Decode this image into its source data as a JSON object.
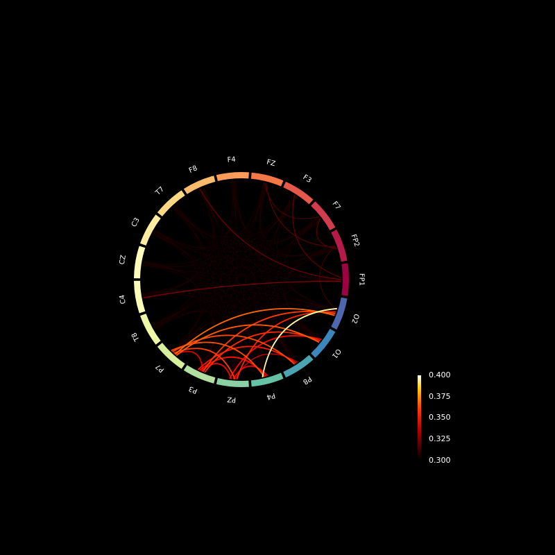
{
  "chart_data": {
    "type": "circular-connectivity",
    "title": "",
    "background": "#000000",
    "label_color": "#ffffff",
    "nodes": [
      {
        "label": "FP1",
        "angle": 0,
        "color": "#9e0142"
      },
      {
        "label": "FP2",
        "angle": 16,
        "color": "#c0234f"
      },
      {
        "label": "F7",
        "angle": 32,
        "color": "#dc494c"
      },
      {
        "label": "F3",
        "angle": 48,
        "color": "#f06744"
      },
      {
        "label": "FZ",
        "angle": 64,
        "color": "#f88c51"
      },
      {
        "label": "F4",
        "angle": 80,
        "color": "#fdb365"
      },
      {
        "label": "F8",
        "angle": 96,
        "color": "#fed27f"
      },
      {
        "label": "T7",
        "angle": 112,
        "color": "#feeb9d"
      },
      {
        "label": "C3",
        "angle": 128,
        "color": "#fffebe"
      },
      {
        "label": "CZ",
        "angle": 144,
        "color": "#f0f9a7"
      },
      {
        "label": "C4",
        "angle": 160,
        "color": "#dbf0a0"
      },
      {
        "label": "T8",
        "angle": 176,
        "color": "#b9e2a4"
      },
      {
        "label": "P7",
        "angle": 192,
        "color": "#8fd1a4"
      },
      {
        "label": "P3",
        "angle": 208,
        "color": "#66c2a5"
      },
      {
        "label": "PZ",
        "angle": 224,
        "color": "#47a0b3"
      },
      {
        "label": "P4",
        "angle": 240,
        "color": "#3682ba"
      },
      {
        "label": "P8",
        "angle": 256,
        "color": "#4d5eab"
      },
      {
        "label": "O1",
        "angle": 272,
        "color": "#5e4fa2"
      },
      {
        "label": "O2",
        "angle": 288,
        "color": "#5e4fa2"
      }
    ],
    "display_order": [
      "FP1",
      "O2",
      "O1",
      "P8",
      "P4",
      "PZ",
      "P3",
      "P7",
      "T8",
      "C4",
      "CZ",
      "C3",
      "T7",
      "F8",
      "F4",
      "FZ",
      "F3",
      "F7",
      "FP2"
    ],
    "node_colors": {
      "FP1": "#9e0142",
      "FP2": "#b51a4a",
      "F7": "#d23c4f",
      "F3": "#e65848",
      "FZ": "#f47748",
      "F4": "#fb9b59",
      "F8": "#fdbb6c",
      "T7": "#fed882",
      "C3": "#feeca0",
      "CZ": "#fffcbb",
      "C4": "#fbfdb7",
      "T8": "#eff8a6",
      "P7": "#d7ef9b",
      "P3": "#b3e0a2",
      "PZ": "#89d0a4",
      "P4": "#66c2a5",
      "P8": "#4ba4b1",
      "O1": "#3b87bc",
      "O2": "#4f68ad"
    },
    "connections": [
      {
        "a": "O2",
        "b": "P4",
        "value": 0.392
      },
      {
        "a": "O2",
        "b": "P7",
        "value": 0.352
      },
      {
        "a": "O2",
        "b": "P3",
        "value": 0.345
      },
      {
        "a": "O2",
        "b": "PZ",
        "value": 0.342
      },
      {
        "a": "O1",
        "b": "P7",
        "value": 0.35
      },
      {
        "a": "O1",
        "b": "P3",
        "value": 0.343
      },
      {
        "a": "O1",
        "b": "PZ",
        "value": 0.337
      },
      {
        "a": "P8",
        "b": "P7",
        "value": 0.347
      },
      {
        "a": "P8",
        "b": "P3",
        "value": 0.34
      },
      {
        "a": "P4",
        "b": "P7",
        "value": 0.348
      },
      {
        "a": "P4",
        "b": "P3",
        "value": 0.338
      },
      {
        "a": "PZ",
        "b": "P7",
        "value": 0.345
      },
      {
        "a": "PZ",
        "b": "P4",
        "value": 0.335
      },
      {
        "a": "P3",
        "b": "P7",
        "value": 0.332
      },
      {
        "a": "P3",
        "b": "PZ",
        "value": 0.336
      },
      {
        "a": "P8",
        "b": "PZ",
        "value": 0.33
      },
      {
        "a": "FP1",
        "b": "C4",
        "value": 0.318
      },
      {
        "a": "FP1",
        "b": "F8",
        "value": 0.315
      },
      {
        "a": "FP1",
        "b": "F3",
        "value": 0.313
      },
      {
        "a": "FP2",
        "b": "FZ",
        "value": 0.312
      },
      {
        "a": "FP2",
        "b": "F7",
        "value": 0.312
      },
      {
        "a": "F7",
        "b": "FZ",
        "value": 0.31
      },
      {
        "a": "O2",
        "b": "FP2",
        "value": 0.309
      }
    ],
    "colorbar": {
      "ticks": [
        "0.400",
        "0.375",
        "0.350",
        "0.325",
        "0.300"
      ],
      "vmin": 0.3,
      "vmax": 0.4,
      "colormap": "hot"
    }
  }
}
